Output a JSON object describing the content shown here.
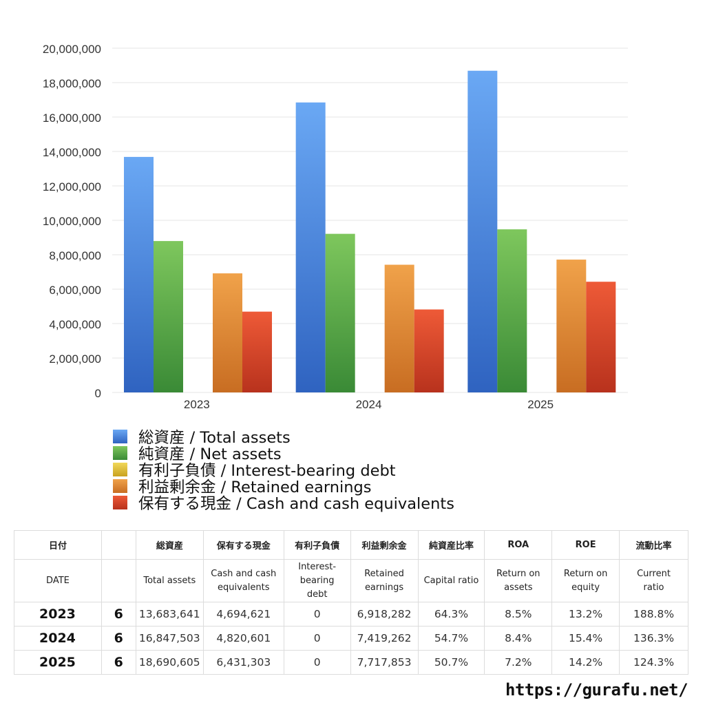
{
  "chart_data": {
    "type": "bar",
    "categories": [
      "2023",
      "2024",
      "2025"
    ],
    "ylim": [
      0,
      20000000
    ],
    "yticks": [
      0,
      2000000,
      4000000,
      6000000,
      8000000,
      10000000,
      12000000,
      14000000,
      16000000,
      18000000,
      20000000
    ],
    "ytick_labels": [
      "0",
      "2,000,000",
      "4,000,000",
      "6,000,000",
      "8,000,000",
      "10,000,000",
      "12,000,000",
      "14,000,000",
      "16,000,000",
      "18,000,000",
      "20,000,000"
    ],
    "grid": true,
    "legend_position": "bottom",
    "series": [
      {
        "name": "総資産 / Total assets",
        "values": [
          13683641,
          16847503,
          18690605
        ],
        "color_top": "#6aa8f4",
        "color_bottom": "#2f63c0"
      },
      {
        "name": "純資産 / Net assets",
        "values": [
          8796000,
          9215000,
          9476000
        ],
        "color_top": "#7ec75d",
        "color_bottom": "#3a8a36"
      },
      {
        "name": "有利子負債 / Interest-bearing debt",
        "values": [
          0,
          0,
          0
        ],
        "color_top": "#f1d85a",
        "color_bottom": "#c9a21f"
      },
      {
        "name": "利益剰余金 / Retained earnings",
        "values": [
          6918282,
          7419262,
          7717853
        ],
        "color_top": "#f0a24a",
        "color_bottom": "#c86d22"
      },
      {
        "name": "保有する現金 /  Cash and cash equivalents",
        "values": [
          4694621,
          4820601,
          6431303
        ],
        "color_top": "#ee5a37",
        "color_bottom": "#b8321d"
      }
    ]
  },
  "table": {
    "header_jp": [
      "日付",
      "",
      "総資産",
      "保有する現金",
      "有利子負債",
      "利益剰余金",
      "純資産比率",
      "ROA",
      "ROE",
      "流動比率"
    ],
    "header_en": [
      "DATE",
      "",
      "Total assets",
      "Cash and cash\nequivalents",
      "Interest-\nbearing\ndebt",
      "Retained\nearnings",
      "Capital ratio",
      "Return on\nassets",
      "Return on\nequity",
      "Current\nratio"
    ],
    "rows": [
      [
        "2023",
        "6",
        "13,683,641",
        "4,694,621",
        "0",
        "6,918,282",
        "64.3%",
        "8.5%",
        "13.2%",
        "188.8%"
      ],
      [
        "2024",
        "6",
        "16,847,503",
        "4,820,601",
        "0",
        "7,419,262",
        "54.7%",
        "8.4%",
        "15.4%",
        "136.3%"
      ],
      [
        "2025",
        "6",
        "18,690,605",
        "6,431,303",
        "0",
        "7,717,853",
        "50.7%",
        "7.2%",
        "14.2%",
        "124.3%"
      ]
    ]
  },
  "footer": {
    "url": "https://gurafu.net/"
  }
}
